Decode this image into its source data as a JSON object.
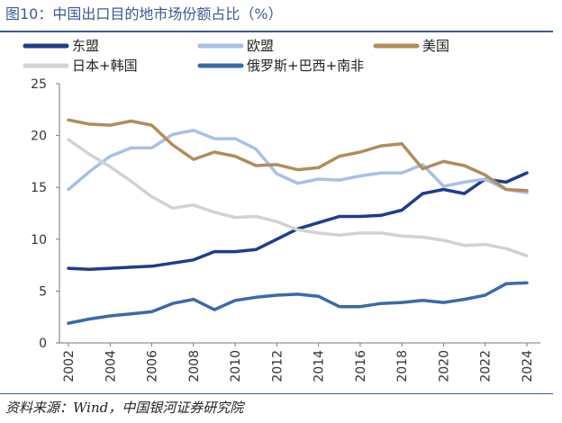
{
  "title": "图10：中国出口目的地市场份额占比（%）",
  "source": "资料来源：Wind，中国银河证券研究院",
  "chart_data": {
    "type": "line",
    "title": "图10：中国出口目的地市场份额占比（%）",
    "xlabel": "",
    "ylabel": "",
    "x": [
      2002,
      2003,
      2004,
      2005,
      2006,
      2007,
      2008,
      2009,
      2010,
      2011,
      2012,
      2013,
      2014,
      2015,
      2016,
      2017,
      2018,
      2019,
      2020,
      2021,
      2022,
      2023,
      2024
    ],
    "x_tick_labels": [
      "2002",
      "2004",
      "2006",
      "2008",
      "2010",
      "2012",
      "2014",
      "2016",
      "2018",
      "2020",
      "2022",
      "2024"
    ],
    "y_tick_labels": [
      "0",
      "5",
      "10",
      "15",
      "20",
      "25"
    ],
    "ylim": [
      0,
      25
    ],
    "grid": false,
    "legend_position": "top",
    "series": [
      {
        "name": "东盟",
        "color": "#1f3d8c",
        "values": [
          7.2,
          7.1,
          7.2,
          7.3,
          7.4,
          7.7,
          8.0,
          8.8,
          8.8,
          9.0,
          10.0,
          11.0,
          11.6,
          12.2,
          12.2,
          12.3,
          12.8,
          14.4,
          14.8,
          14.4,
          15.8,
          15.5,
          16.4
        ]
      },
      {
        "name": "欧盟",
        "color": "#a9c0e6",
        "values": [
          14.8,
          16.5,
          18.0,
          18.8,
          18.8,
          20.1,
          20.5,
          19.7,
          19.7,
          18.7,
          16.3,
          15.4,
          15.8,
          15.7,
          16.1,
          16.4,
          16.4,
          17.2,
          15.1,
          15.5,
          15.8,
          14.8,
          14.5
        ]
      },
      {
        "name": "美国",
        "color": "#b08d5a",
        "values": [
          21.5,
          21.1,
          21.0,
          21.4,
          21.0,
          19.1,
          17.7,
          18.4,
          18.0,
          17.1,
          17.2,
          16.7,
          16.9,
          18.0,
          18.4,
          19.0,
          19.2,
          16.8,
          17.5,
          17.1,
          16.2,
          14.8,
          14.7
        ]
      },
      {
        "name": "日本+韩国",
        "color": "#d2d2d2",
        "values": [
          19.6,
          18.2,
          17.0,
          15.6,
          14.1,
          13.0,
          13.3,
          12.6,
          12.1,
          12.2,
          11.7,
          10.9,
          10.6,
          10.4,
          10.6,
          10.6,
          10.3,
          10.2,
          9.9,
          9.4,
          9.5,
          9.1,
          8.4
        ]
      },
      {
        "name": "俄罗斯+巴西+南非",
        "color": "#3a6aac",
        "values": [
          1.9,
          2.3,
          2.6,
          2.8,
          3.0,
          3.8,
          4.2,
          3.2,
          4.1,
          4.4,
          4.6,
          4.7,
          4.5,
          3.5,
          3.5,
          3.8,
          3.9,
          4.1,
          3.9,
          4.2,
          4.6,
          5.7,
          5.8
        ]
      }
    ]
  }
}
